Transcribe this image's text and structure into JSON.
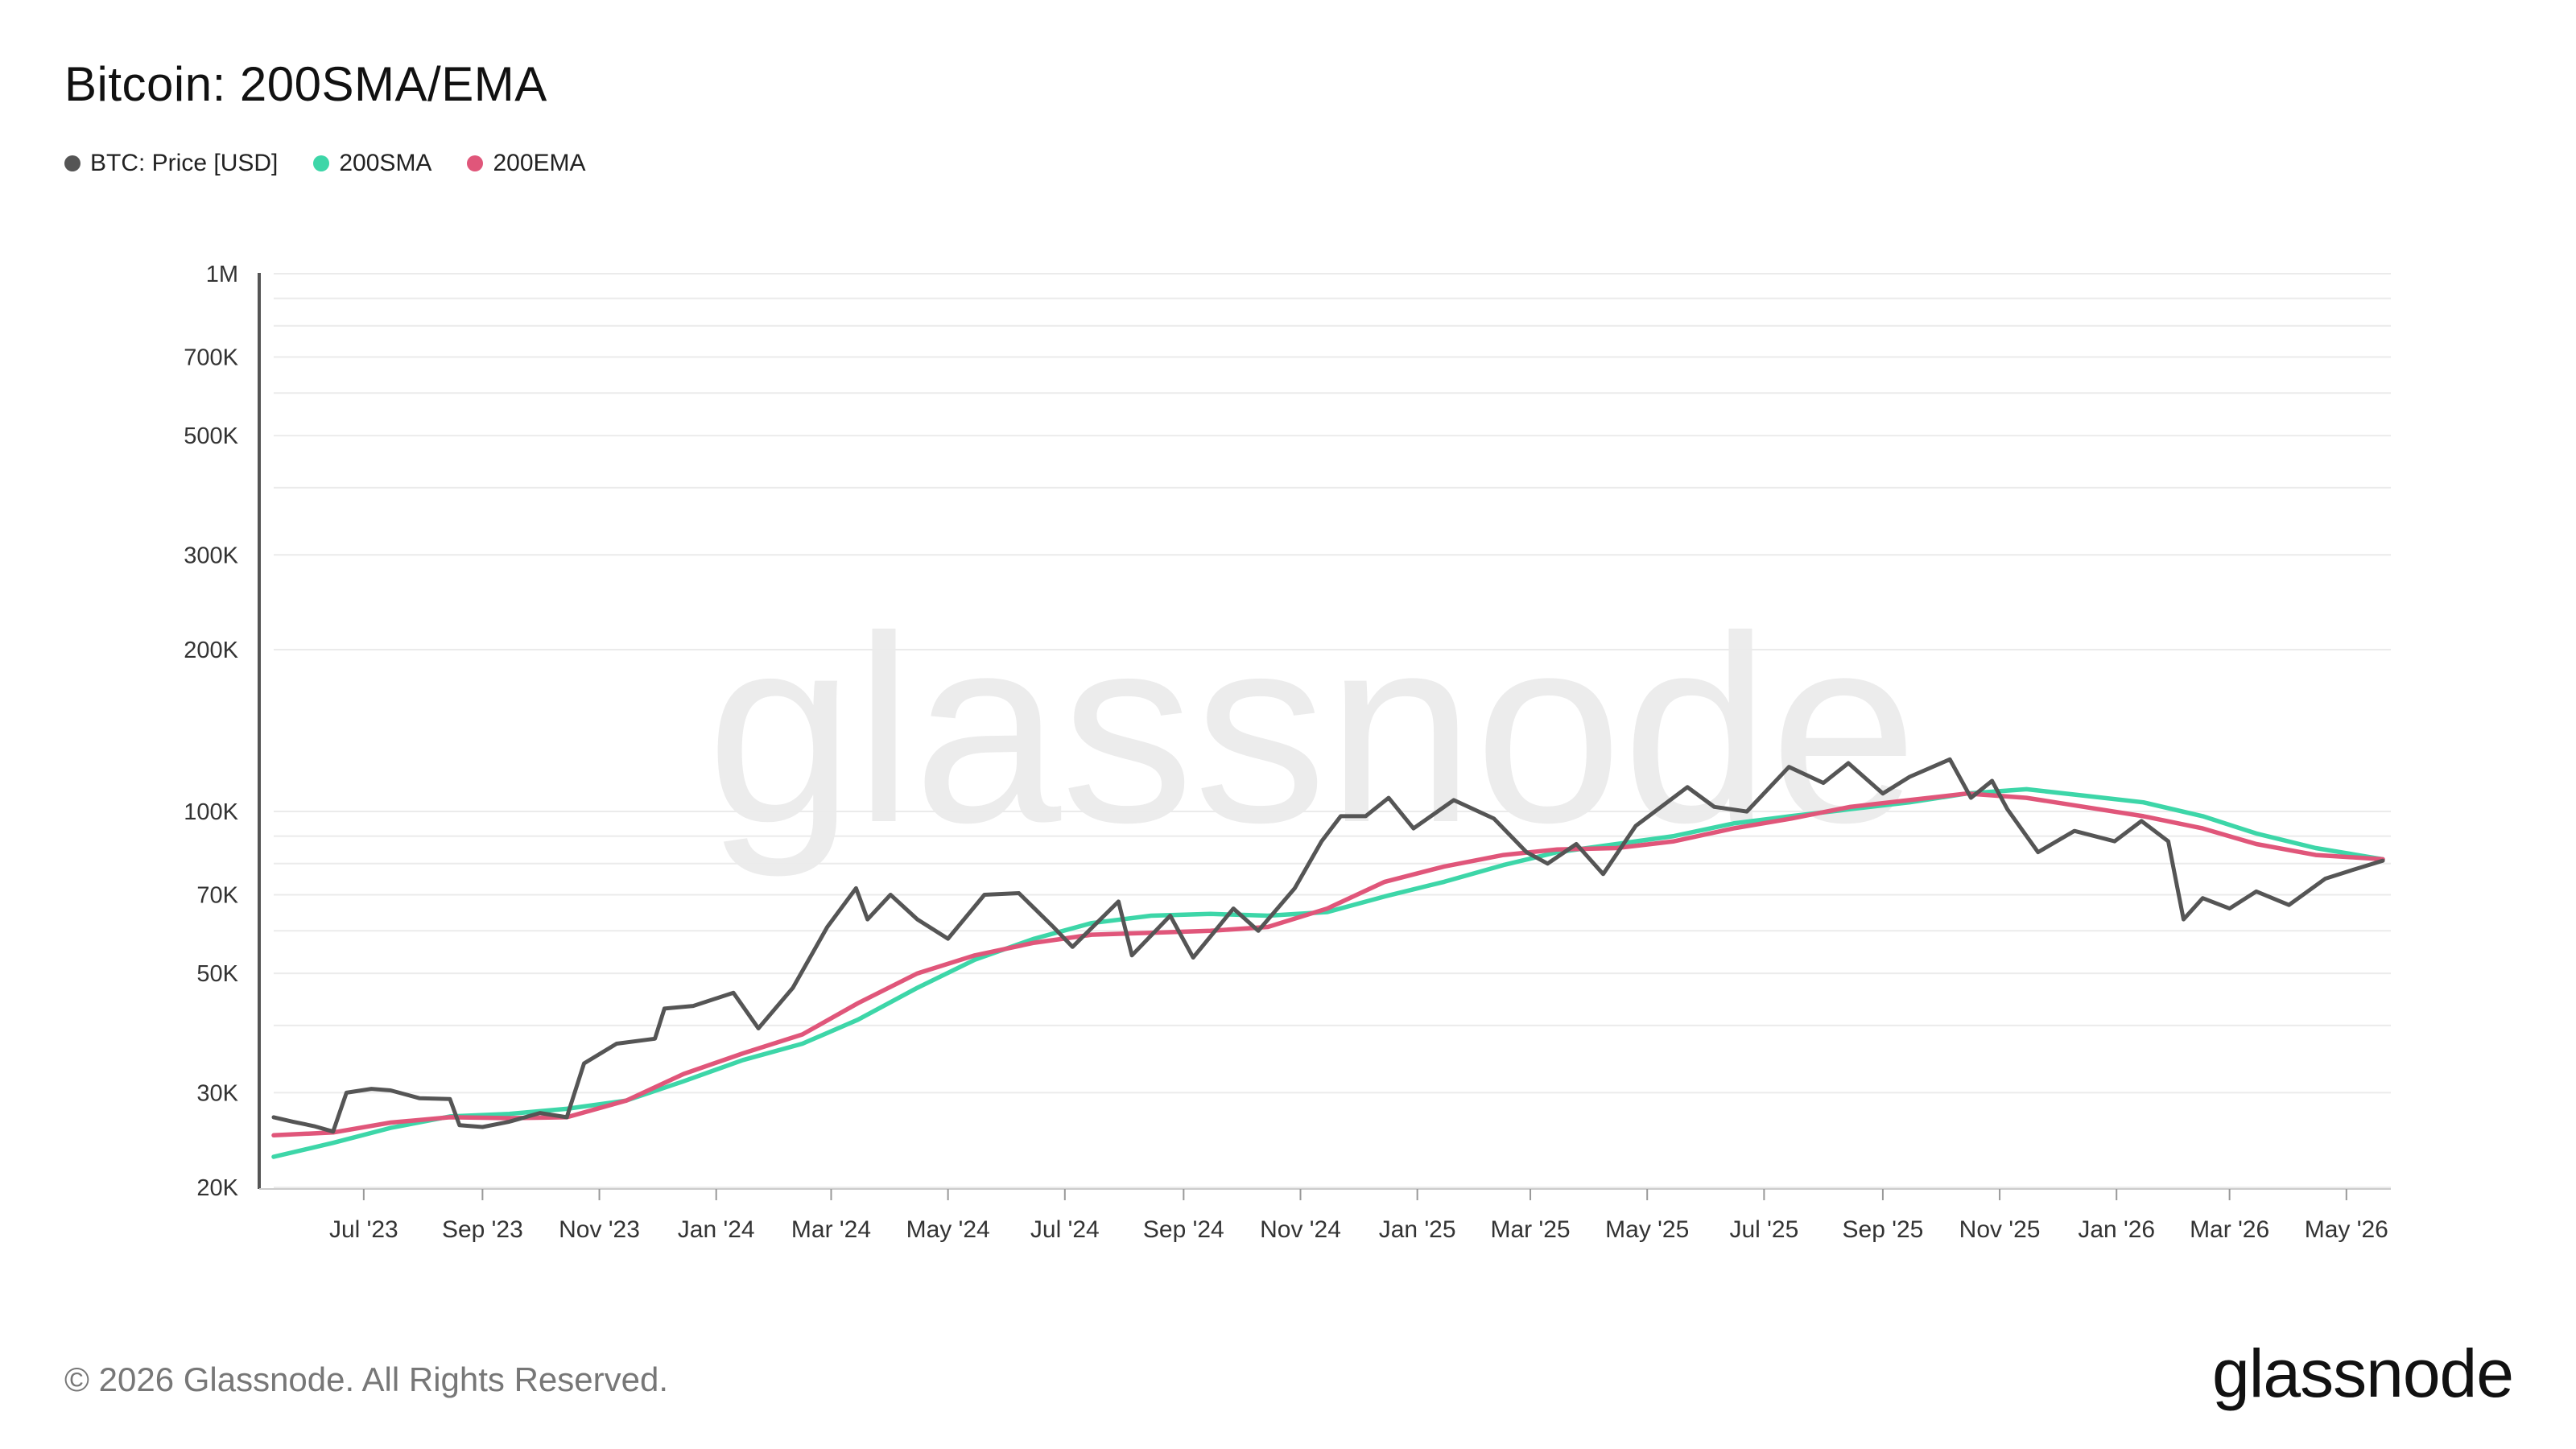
{
  "title": "Bitcoin: 200SMA/EMA",
  "legend": [
    {
      "label": "BTC: Price [USD]",
      "color": "#555555"
    },
    {
      "label": "200SMA",
      "color": "#3dd6a8"
    },
    {
      "label": "200EMA",
      "color": "#e0567a"
    }
  ],
  "watermark": "glassnode",
  "footer": "© 2026 Glassnode. All Rights Reserved.",
  "brand": "glassnode",
  "chart_data": {
    "type": "line",
    "y_scale": "log",
    "ylim": [
      20000,
      1000000
    ],
    "y_ticks": [
      {
        "value": 20000,
        "label": "20K"
      },
      {
        "value": 30000,
        "label": "30K"
      },
      {
        "value": 50000,
        "label": "50K"
      },
      {
        "value": 70000,
        "label": "70K"
      },
      {
        "value": 100000,
        "label": "100K"
      },
      {
        "value": 200000,
        "label": "200K"
      },
      {
        "value": 300000,
        "label": "300K"
      },
      {
        "value": 500000,
        "label": "500K"
      },
      {
        "value": 700000,
        "label": "700K"
      },
      {
        "value": 1000000,
        "label": "1M"
      }
    ],
    "xlim": [
      "2023-05-15",
      "2026-05-20"
    ],
    "x_ticks": [
      {
        "date": "2023-07-01",
        "label": "Jul '23"
      },
      {
        "date": "2023-09-01",
        "label": "Sep '23"
      },
      {
        "date": "2023-11-01",
        "label": "Nov '23"
      },
      {
        "date": "2024-01-01",
        "label": "Jan '24"
      },
      {
        "date": "2024-03-01",
        "label": "Mar '24"
      },
      {
        "date": "2024-05-01",
        "label": "May '24"
      },
      {
        "date": "2024-07-01",
        "label": "Jul '24"
      },
      {
        "date": "2024-09-01",
        "label": "Sep '24"
      },
      {
        "date": "2024-11-01",
        "label": "Nov '24"
      },
      {
        "date": "2025-01-01",
        "label": "Jan '25"
      },
      {
        "date": "2025-03-01",
        "label": "Mar '25"
      },
      {
        "date": "2025-05-01",
        "label": "May '25"
      },
      {
        "date": "2025-07-01",
        "label": "Jul '25"
      },
      {
        "date": "2025-09-01",
        "label": "Sep '25"
      },
      {
        "date": "2025-11-01",
        "label": "Nov '25"
      },
      {
        "date": "2026-01-01",
        "label": "Jan '26"
      },
      {
        "date": "2026-03-01",
        "label": "Mar '26"
      },
      {
        "date": "2026-05-01",
        "label": "May '26"
      }
    ],
    "grid": true,
    "series": [
      {
        "name": "BTC: Price [USD]",
        "color": "#555555",
        "points": [
          [
            "2023-05-15",
            27000
          ],
          [
            "2023-05-25",
            26500
          ],
          [
            "2023-06-05",
            26000
          ],
          [
            "2023-06-15",
            25400
          ],
          [
            "2023-06-22",
            30000
          ],
          [
            "2023-07-05",
            30500
          ],
          [
            "2023-07-15",
            30300
          ],
          [
            "2023-07-30",
            29300
          ],
          [
            "2023-08-15",
            29200
          ],
          [
            "2023-08-20",
            26100
          ],
          [
            "2023-09-01",
            25900
          ],
          [
            "2023-09-15",
            26500
          ],
          [
            "2023-10-01",
            27500
          ],
          [
            "2023-10-15",
            27000
          ],
          [
            "2023-10-24",
            34000
          ],
          [
            "2023-11-10",
            37000
          ],
          [
            "2023-11-30",
            37800
          ],
          [
            "2023-12-05",
            43000
          ],
          [
            "2023-12-20",
            43500
          ],
          [
            "2024-01-10",
            46000
          ],
          [
            "2024-01-23",
            39500
          ],
          [
            "2024-02-10",
            47000
          ],
          [
            "2024-02-28",
            61000
          ],
          [
            "2024-03-14",
            72000
          ],
          [
            "2024-03-20",
            63000
          ],
          [
            "2024-04-01",
            70000
          ],
          [
            "2024-04-15",
            63000
          ],
          [
            "2024-05-01",
            58000
          ],
          [
            "2024-05-20",
            70000
          ],
          [
            "2024-06-07",
            70500
          ],
          [
            "2024-06-25",
            61000
          ],
          [
            "2024-07-05",
            56000
          ],
          [
            "2024-07-29",
            68000
          ],
          [
            "2024-08-05",
            54000
          ],
          [
            "2024-08-25",
            64000
          ],
          [
            "2024-09-06",
            53500
          ],
          [
            "2024-09-27",
            66000
          ],
          [
            "2024-10-10",
            60000
          ],
          [
            "2024-10-29",
            72000
          ],
          [
            "2024-11-12",
            88000
          ],
          [
            "2024-11-22",
            98000
          ],
          [
            "2024-12-05",
            98000
          ],
          [
            "2024-12-17",
            106000
          ],
          [
            "2024-12-30",
            93000
          ],
          [
            "2025-01-20",
            105000
          ],
          [
            "2025-02-10",
            97000
          ],
          [
            "2025-02-27",
            84000
          ],
          [
            "2025-03-10",
            80000
          ],
          [
            "2025-03-25",
            87000
          ],
          [
            "2025-04-08",
            76500
          ],
          [
            "2025-04-25",
            94000
          ],
          [
            "2025-05-22",
            111000
          ],
          [
            "2025-06-05",
            102000
          ],
          [
            "2025-06-22",
            100000
          ],
          [
            "2025-07-14",
            121000
          ],
          [
            "2025-08-01",
            113000
          ],
          [
            "2025-08-14",
            123000
          ],
          [
            "2025-09-01",
            108000
          ],
          [
            "2025-09-15",
            116000
          ],
          [
            "2025-10-06",
            125000
          ],
          [
            "2025-10-17",
            106000
          ],
          [
            "2025-10-28",
            114000
          ],
          [
            "2025-11-05",
            101000
          ],
          [
            "2025-11-21",
            84000
          ],
          [
            "2025-12-10",
            92000
          ],
          [
            "2025-12-31",
            88000
          ],
          [
            "2026-01-14",
            96000
          ],
          [
            "2026-01-28",
            88000
          ],
          [
            "2026-02-05",
            63000
          ],
          [
            "2026-02-15",
            69000
          ],
          [
            "2026-03-01",
            66000
          ],
          [
            "2026-03-15",
            71000
          ],
          [
            "2026-04-01",
            67000
          ],
          [
            "2026-04-20",
            75000
          ],
          [
            "2026-05-05",
            78000
          ],
          [
            "2026-05-20",
            81000
          ]
        ]
      },
      {
        "name": "200SMA",
        "color": "#3dd6a8",
        "points": [
          [
            "2023-05-15",
            22800
          ],
          [
            "2023-06-15",
            24200
          ],
          [
            "2023-07-15",
            25800
          ],
          [
            "2023-08-15",
            27100
          ],
          [
            "2023-09-15",
            27400
          ],
          [
            "2023-10-15",
            28000
          ],
          [
            "2023-11-15",
            29000
          ],
          [
            "2023-12-15",
            31500
          ],
          [
            "2024-01-15",
            34500
          ],
          [
            "2024-02-15",
            37000
          ],
          [
            "2024-03-15",
            41000
          ],
          [
            "2024-04-15",
            47000
          ],
          [
            "2024-05-15",
            53000
          ],
          [
            "2024-06-15",
            58000
          ],
          [
            "2024-07-15",
            62000
          ],
          [
            "2024-08-15",
            64000
          ],
          [
            "2024-09-15",
            64500
          ],
          [
            "2024-10-15",
            64000
          ],
          [
            "2024-11-15",
            65000
          ],
          [
            "2024-12-15",
            69500
          ],
          [
            "2025-01-15",
            74000
          ],
          [
            "2025-02-15",
            79500
          ],
          [
            "2025-03-15",
            84000
          ],
          [
            "2025-04-15",
            87000
          ],
          [
            "2025-05-15",
            90000
          ],
          [
            "2025-06-15",
            95000
          ],
          [
            "2025-07-15",
            98000
          ],
          [
            "2025-08-15",
            101000
          ],
          [
            "2025-09-15",
            104000
          ],
          [
            "2025-10-15",
            108000
          ],
          [
            "2025-11-15",
            110000
          ],
          [
            "2025-12-15",
            107000
          ],
          [
            "2026-01-15",
            104000
          ],
          [
            "2026-02-15",
            98000
          ],
          [
            "2026-03-15",
            91000
          ],
          [
            "2026-04-15",
            85500
          ],
          [
            "2026-05-20",
            81500
          ]
        ]
      },
      {
        "name": "200EMA",
        "color": "#e0567a",
        "points": [
          [
            "2023-05-15",
            25000
          ],
          [
            "2023-06-15",
            25300
          ],
          [
            "2023-07-15",
            26400
          ],
          [
            "2023-08-15",
            27000
          ],
          [
            "2023-09-15",
            26900
          ],
          [
            "2023-10-15",
            27000
          ],
          [
            "2023-11-15",
            29000
          ],
          [
            "2023-12-15",
            32500
          ],
          [
            "2024-01-15",
            35500
          ],
          [
            "2024-02-15",
            38500
          ],
          [
            "2024-03-15",
            44000
          ],
          [
            "2024-04-15",
            50000
          ],
          [
            "2024-05-15",
            54000
          ],
          [
            "2024-06-15",
            57000
          ],
          [
            "2024-07-15",
            59000
          ],
          [
            "2024-08-15",
            59500
          ],
          [
            "2024-09-15",
            60000
          ],
          [
            "2024-10-15",
            61000
          ],
          [
            "2024-11-15",
            66000
          ],
          [
            "2024-12-15",
            74000
          ],
          [
            "2025-01-15",
            79000
          ],
          [
            "2025-02-15",
            83000
          ],
          [
            "2025-03-15",
            85000
          ],
          [
            "2025-04-15",
            85500
          ],
          [
            "2025-05-15",
            88000
          ],
          [
            "2025-06-15",
            93000
          ],
          [
            "2025-07-15",
            97000
          ],
          [
            "2025-08-15",
            102000
          ],
          [
            "2025-09-15",
            105000
          ],
          [
            "2025-10-15",
            108000
          ],
          [
            "2025-11-15",
            106000
          ],
          [
            "2025-12-15",
            102000
          ],
          [
            "2026-01-15",
            98000
          ],
          [
            "2026-02-15",
            93000
          ],
          [
            "2026-03-15",
            87000
          ],
          [
            "2026-04-15",
            83000
          ],
          [
            "2026-05-20",
            81500
          ]
        ]
      }
    ]
  }
}
